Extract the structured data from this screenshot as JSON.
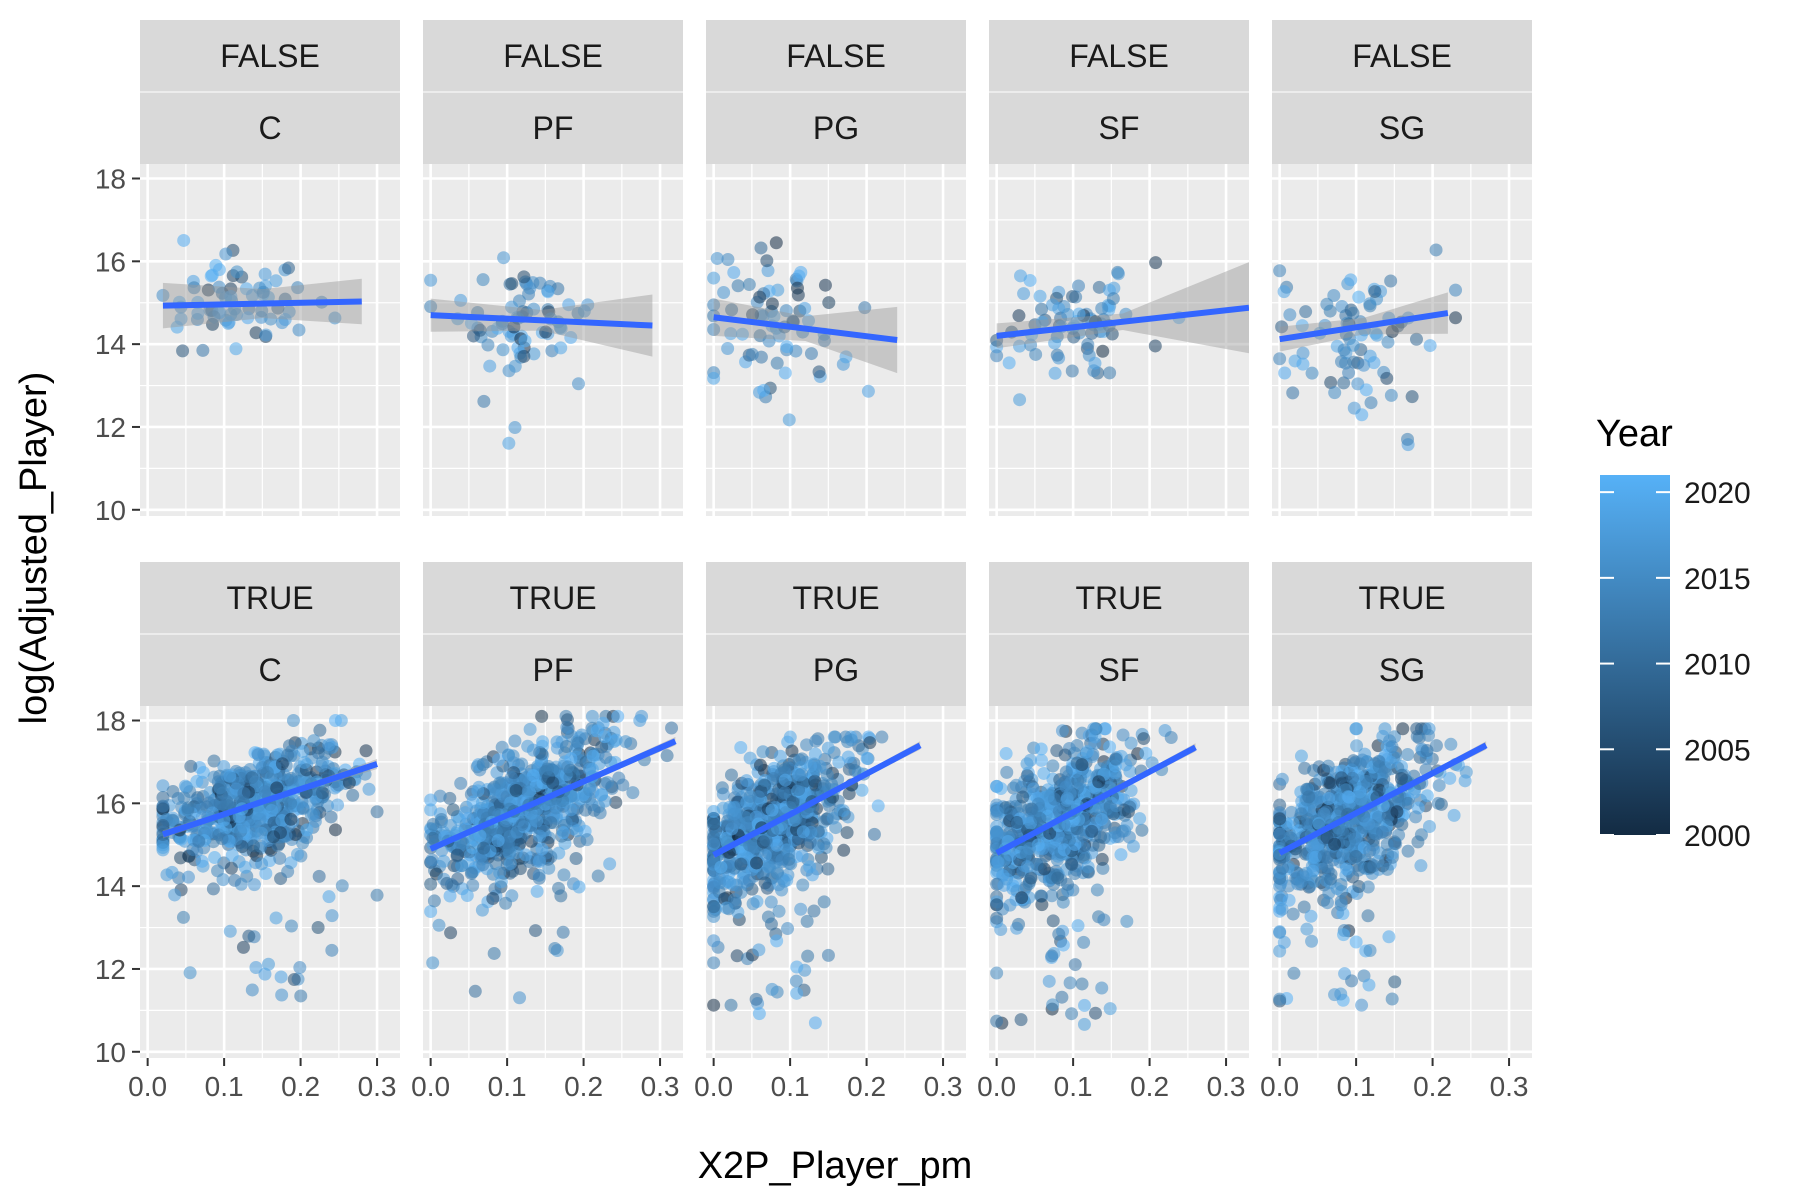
{
  "chart_data": {
    "type": "scatter",
    "xlabel": "X2P_Player_pm",
    "ylabel": "log(Adjusted_Player)",
    "xlim": [
      -0.01,
      0.33
    ],
    "ylim": [
      9.85,
      18.35
    ],
    "x_ticks": [
      "0.0",
      "0.1",
      "0.2",
      "0.3"
    ],
    "x_tick_values": [
      0,
      0.1,
      0.2,
      0.3
    ],
    "y_ticks": [
      "10",
      "12",
      "14",
      "16",
      "18"
    ],
    "y_tick_values": [
      10,
      12,
      14,
      16,
      18
    ],
    "grid": true,
    "point_color_by": "Year",
    "smoother": "linear fit with confidence band",
    "colors": {
      "panel_bg": "#ebebeb",
      "strip_bg": "#d9d9d9",
      "grid": "#ffffff",
      "fit_line": "#3366ff",
      "ribbon": "#999999",
      "year_low": "#132b43",
      "year_high": "#56b1f7"
    },
    "legend": {
      "title": "Year",
      "position": "right",
      "labels": [
        "2020",
        "2015",
        "2010",
        "2005",
        "2000"
      ],
      "values": [
        2020,
        2015,
        2010,
        2005,
        2000
      ],
      "range": [
        2000,
        2021
      ]
    },
    "panels": [
      {
        "row_label": "FALSE",
        "col_label": "C",
        "fit": {
          "x": [
            0.02,
            0.28
          ],
          "y": [
            14.93,
            15.03
          ]
        },
        "band": [
          0.55,
          0.35,
          0.55
        ],
        "cloud": {
          "x": [
            0.02,
            0.3
          ],
          "y": [
            12.5,
            16.6
          ],
          "cx": 0.12,
          "cy": 14.9,
          "sx": 0.045,
          "sy": 0.7,
          "n": 70
        }
      },
      {
        "row_label": "FALSE",
        "col_label": "PF",
        "fit": {
          "x": [
            0.0,
            0.29
          ],
          "y": [
            14.7,
            14.45
          ]
        },
        "band": [
          0.4,
          0.25,
          0.75
        ],
        "cloud": {
          "x": [
            0.0,
            0.3
          ],
          "y": [
            11.4,
            16.6
          ],
          "cx": 0.11,
          "cy": 14.6,
          "sx": 0.05,
          "sy": 0.8,
          "n": 75
        }
      },
      {
        "row_label": "FALSE",
        "col_label": "PG",
        "fit": {
          "x": [
            0.0,
            0.24
          ],
          "y": [
            14.65,
            14.1
          ]
        },
        "band": [
          0.45,
          0.3,
          0.8
        ],
        "cloud": {
          "x": [
            0.0,
            0.25
          ],
          "y": [
            11.4,
            16.6
          ],
          "cx": 0.08,
          "cy": 14.5,
          "sx": 0.05,
          "sy": 1.1,
          "n": 75
        }
      },
      {
        "row_label": "FALSE",
        "col_label": "SF",
        "fit": {
          "x": [
            0.0,
            0.33
          ],
          "y": [
            14.2,
            14.88
          ]
        },
        "band": [
          0.3,
          0.2,
          1.1
        ],
        "cloud": {
          "x": [
            0.0,
            0.33
          ],
          "y": [
            10.5,
            16.5
          ],
          "cx": 0.1,
          "cy": 14.5,
          "sx": 0.05,
          "sy": 0.9,
          "n": 80
        }
      },
      {
        "row_label": "FALSE",
        "col_label": "SG",
        "fit": {
          "x": [
            0.0,
            0.22
          ],
          "y": [
            14.12,
            14.75
          ]
        },
        "band": [
          0.3,
          0.2,
          0.5
        ],
        "cloud": {
          "x": [
            0.0,
            0.23
          ],
          "y": [
            11.3,
            16.5
          ],
          "cx": 0.1,
          "cy": 14.5,
          "sx": 0.05,
          "sy": 1.0,
          "n": 80
        }
      },
      {
        "row_label": "TRUE",
        "col_label": "C",
        "fit": {
          "x": [
            0.02,
            0.3
          ],
          "y": [
            15.25,
            16.95
          ]
        },
        "band": [
          0.1,
          0.05,
          0.12
        ],
        "cloud": {
          "x": [
            0.02,
            0.3
          ],
          "y": [
            11.3,
            18.0
          ],
          "cx": 0.14,
          "cy": 15.9,
          "sx": 0.06,
          "sy": 0.85,
          "n": 650
        }
      },
      {
        "row_label": "TRUE",
        "col_label": "PF",
        "fit": {
          "x": [
            0.0,
            0.32
          ],
          "y": [
            14.9,
            17.5
          ]
        },
        "band": [
          0.08,
          0.05,
          0.1
        ],
        "cloud": {
          "x": [
            0.0,
            0.32
          ],
          "y": [
            11.3,
            18.1
          ],
          "cx": 0.12,
          "cy": 15.7,
          "sx": 0.06,
          "sy": 0.95,
          "n": 750
        }
      },
      {
        "row_label": "TRUE",
        "col_label": "PG",
        "fit": {
          "x": [
            0.0,
            0.27
          ],
          "y": [
            14.75,
            17.4
          ]
        },
        "band": [
          0.08,
          0.05,
          0.1
        ],
        "cloud": {
          "x": [
            0.0,
            0.27
          ],
          "y": [
            10.5,
            17.6
          ],
          "cx": 0.08,
          "cy": 15.9,
          "sx": 0.05,
          "sy": 1.0,
          "n": 700
        }
      },
      {
        "row_label": "TRUE",
        "col_label": "SF",
        "fit": {
          "x": [
            0.0,
            0.26
          ],
          "y": [
            14.8,
            17.35
          ]
        },
        "band": [
          0.08,
          0.05,
          0.1
        ],
        "cloud": {
          "x": [
            0.0,
            0.26
          ],
          "y": [
            10.3,
            17.8
          ],
          "cx": 0.08,
          "cy": 15.8,
          "sx": 0.05,
          "sy": 1.0,
          "n": 700
        }
      },
      {
        "row_label": "TRUE",
        "col_label": "SG",
        "fit": {
          "x": [
            0.0,
            0.27
          ],
          "y": [
            14.8,
            17.4
          ]
        },
        "band": [
          0.08,
          0.05,
          0.1
        ],
        "cloud": {
          "x": [
            0.0,
            0.27
          ],
          "y": [
            11.1,
            17.8
          ],
          "cx": 0.09,
          "cy": 15.8,
          "sx": 0.055,
          "sy": 1.0,
          "n": 700
        }
      }
    ]
  }
}
